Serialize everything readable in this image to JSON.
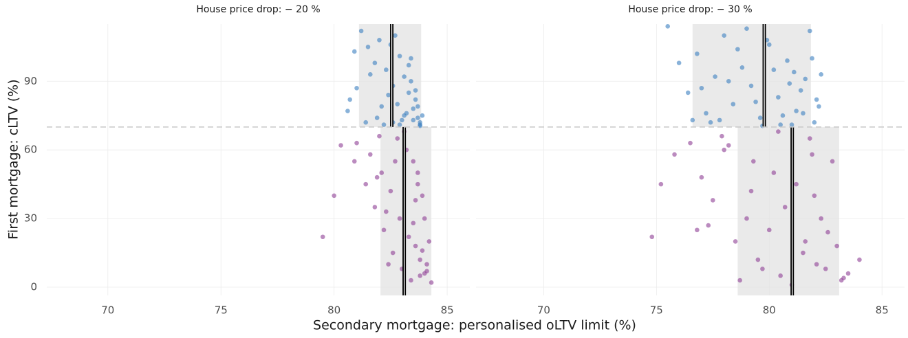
{
  "chart_data": [
    {
      "type": "scatter",
      "title": "House price drop: − 20 %",
      "xlabel": "Secondary mortgage: personalised oLTV limit (%)",
      "ylabel": "First mortgage: cLTV (%)",
      "xlim": [
        67.3,
        86
      ],
      "ylim": [
        -3.6,
        115
      ],
      "xticks": [
        70,
        75,
        80,
        85
      ],
      "yticks": [
        0,
        30,
        60,
        90
      ],
      "hline": 70,
      "grid": true,
      "series": [
        {
          "color": "#3a7fc0",
          "median": 82.55,
          "band": [
            81.1,
            83.85
          ],
          "x": [
            81.2,
            81.5,
            81.8,
            82.0,
            82.3,
            82.6,
            82.9,
            83.1,
            83.3,
            83.5,
            83.7,
            83.8,
            83.6,
            83.4,
            83.2,
            83.0,
            82.8,
            82.4,
            82.1,
            81.6,
            81.0,
            80.6,
            80.9,
            81.4,
            82.2,
            82.7,
            83.3,
            83.6,
            83.9,
            83.5,
            82.9,
            82.5,
            83.8,
            83.7,
            83.4,
            81.9,
            82.6,
            83.1,
            80.7,
            83.8
          ],
          "values": [
            112,
            105,
            98,
            108,
            95,
            88,
            101,
            92,
            85,
            78,
            74,
            71,
            82,
            90,
            76,
            73,
            80,
            84,
            79,
            93,
            87,
            77,
            103,
            72,
            71,
            110,
            97,
            86,
            75,
            73,
            71,
            106,
            72,
            79,
            100,
            74,
            72,
            75,
            82,
            70.5
          ]
        },
        {
          "color": "#8e3d95",
          "median": 83.1,
          "band": [
            82.05,
            84.3
          ],
          "x": [
            82.8,
            83.2,
            83.5,
            83.7,
            83.9,
            84.0,
            84.2,
            84.1,
            83.8,
            83.4,
            83.0,
            82.6,
            82.2,
            81.8,
            81.4,
            80.9,
            80.3,
            79.5,
            80.0,
            81.0,
            81.6,
            82.1,
            82.5,
            82.9,
            83.3,
            83.6,
            83.8,
            84.3,
            84.0,
            83.7,
            83.1,
            82.7,
            82.4,
            81.9,
            82.3,
            83.5,
            83.9,
            84.1,
            83.6,
            82.0
          ],
          "values": [
            65,
            60,
            55,
            50,
            40,
            30,
            20,
            10,
            5,
            3,
            8,
            15,
            25,
            35,
            45,
            55,
            62,
            22,
            40,
            63,
            58,
            50,
            42,
            30,
            22,
            18,
            12,
            2,
            6,
            45,
            68,
            55,
            10,
            48,
            33,
            28,
            16,
            7,
            38,
            66
          ]
        }
      ]
    },
    {
      "type": "scatter",
      "title": "House price drop: − 30 %",
      "xlim": [
        67.0,
        86
      ],
      "ylim": [
        -3.6,
        115
      ],
      "xticks": [
        70,
        75,
        80,
        85
      ],
      "yticks": [
        0,
        30,
        60,
        90
      ],
      "hline": 70,
      "grid": true,
      "series": [
        {
          "color": "#3a7fc0",
          "median": 79.78,
          "band": [
            76.6,
            81.85
          ],
          "x": [
            75.5,
            76.0,
            76.4,
            76.8,
            77.2,
            77.6,
            78.0,
            78.4,
            78.8,
            79.2,
            79.6,
            80.0,
            80.4,
            80.8,
            81.2,
            81.6,
            82.0,
            82.3,
            81.8,
            81.0,
            80.2,
            79.4,
            78.6,
            77.8,
            77.0,
            76.6,
            79.9,
            80.6,
            81.4,
            82.2,
            81.9,
            81.1,
            80.5,
            79.0,
            78.2,
            77.4,
            80.9,
            81.5,
            82.1,
            79.7
          ],
          "values": [
            114,
            98,
            85,
            102,
            76,
            92,
            110,
            80,
            96,
            88,
            74,
            106,
            83,
            99,
            77,
            91,
            72,
            93,
            112,
            71,
            95,
            81,
            104,
            73,
            87,
            73,
            108,
            75,
            86,
            79,
            100,
            94,
            71,
            113,
            90,
            72,
            89,
            76,
            82,
            70.5
          ]
        },
        {
          "color": "#8e3d95",
          "median": 81.02,
          "band": [
            78.6,
            83.1
          ],
          "x": [
            74.8,
            75.2,
            75.8,
            76.5,
            77.0,
            77.5,
            78.0,
            78.5,
            79.0,
            79.5,
            80.0,
            80.5,
            81.0,
            81.5,
            82.0,
            82.5,
            83.0,
            83.5,
            84.0,
            83.2,
            82.8,
            82.3,
            81.8,
            81.2,
            80.7,
            80.2,
            79.7,
            79.2,
            78.7,
            78.2,
            77.3,
            76.8,
            81.6,
            82.1,
            82.6,
            80.4,
            79.3,
            83.3,
            81.9,
            77.9
          ],
          "values": [
            22,
            45,
            58,
            63,
            48,
            38,
            60,
            20,
            30,
            12,
            25,
            5,
            1,
            15,
            40,
            8,
            18,
            6,
            12,
            3,
            55,
            30,
            65,
            45,
            35,
            50,
            8,
            42,
            3,
            62,
            27,
            25,
            20,
            10,
            24,
            68,
            55,
            4,
            58,
            66
          ]
        }
      ]
    }
  ]
}
